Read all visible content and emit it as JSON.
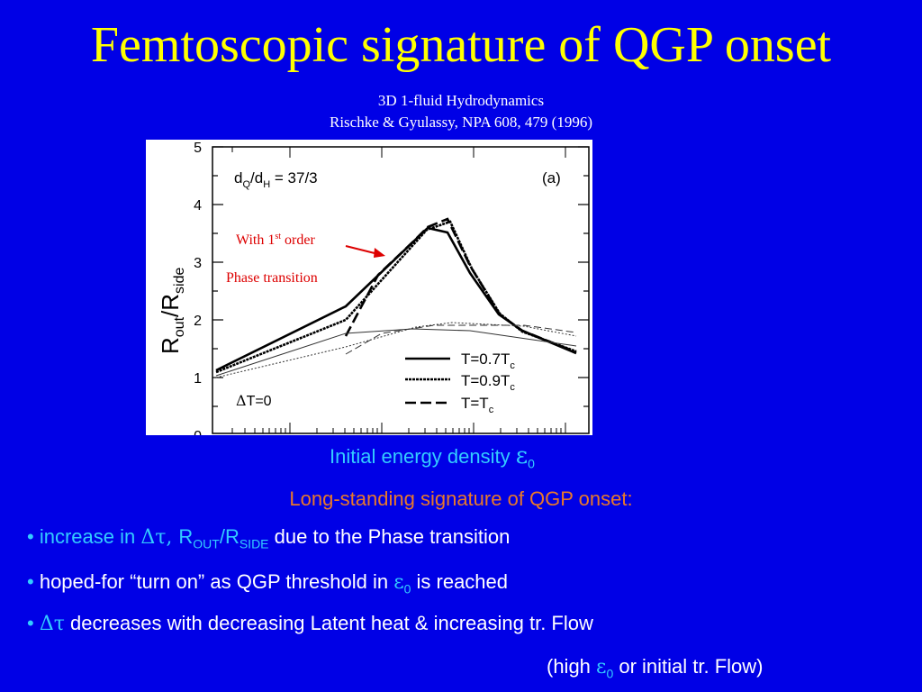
{
  "slide": {
    "title": "Femtoscopic signature of QGP onset",
    "subtitle1": "3D 1-fluid Hydrodynamics",
    "subtitle2": "Rischke & Gyulassy, NPA 608, 479 (1996)"
  },
  "figure": {
    "ylabel_main": "R",
    "ylabel_sub1": "out",
    "ylabel_sep": "/R",
    "ylabel_sub2": "side",
    "yticks": [
      "5",
      "4",
      "3",
      "2",
      "1",
      "0"
    ],
    "ratio_main": "d",
    "ratio_q": "Q",
    "ratio_sep": "/d",
    "ratio_h": "H",
    "ratio_val": " = 37/3",
    "panel": "(a)",
    "annot1": "With 1",
    "annot1_sup": "st",
    "annot1_end": " order",
    "annot2": "Phase transition",
    "dt0": "T=0",
    "dt0_sym": "Δ",
    "legend": [
      {
        "pre": "T=0.7T",
        "sub": "c"
      },
      {
        "pre": "T=0.9T",
        "sub": "c"
      },
      {
        "pre": "T=T",
        "sub": "c"
      }
    ]
  },
  "xlabel": {
    "text": "Initial energy density ",
    "sym": "ε",
    "sub": "0"
  },
  "long_title": "Long-standing signature of QGP onset:",
  "bullets": {
    "b1_a": "increase in ",
    "b1_sym": "Δτ, ",
    "b1_r": "R",
    "b1_out": "OUT",
    "b1_sep": "/R",
    "b1_side": "SIDE",
    "b1_end": " due to the Phase transition",
    "b2_a": "hoped-for “turn on” as QGP threshold in ",
    "b2_sym": "ε",
    "b2_sub": "0",
    "b2_end": " is reached",
    "b3_sym": "Δτ",
    "b3_end": " decreases with decreasing Latent heat & increasing tr. Flow",
    "b4_a": "(high ",
    "b4_sym": "ε",
    "b4_sub": "0",
    "b4_end": " or initial tr. Flow)",
    "marker": "•"
  },
  "colors": {
    "background": "#0000e6",
    "title": "#ffff00",
    "cyan": "#33ccff",
    "orange": "#e8782a",
    "annotation": "#dd0000"
  }
}
